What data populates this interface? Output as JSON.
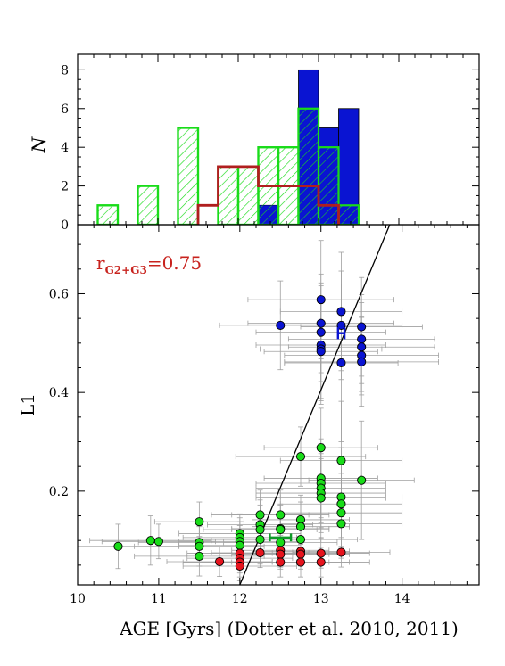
{
  "colors": {
    "blue": "#0a14d2",
    "green": "#19dc19",
    "green_dark": "#0e9a28",
    "red": "#e6141e",
    "dark_red": "#b01e1e",
    "errorbar": "#a0a0a0",
    "line": "#000000"
  },
  "chart_data": [
    {
      "type": "histogram",
      "ylabel": "N",
      "xlim": [
        10,
        15
      ],
      "ylim": [
        0,
        8.8
      ],
      "yticks": [
        "0",
        "2",
        "4",
        "6",
        "8"
      ],
      "bin_width": 0.25,
      "series": [
        {
          "group": "green",
          "style": "hatched",
          "bins": [
            {
              "x0": 10.25,
              "x1": 10.5,
              "n": 1
            },
            {
              "x0": 10.75,
              "x1": 11.0,
              "n": 2
            },
            {
              "x0": 11.25,
              "x1": 11.5,
              "n": 5
            },
            {
              "x0": 11.75,
              "x1": 12.0,
              "n": 3
            },
            {
              "x0": 12.0,
              "x1": 12.25,
              "n": 3
            },
            {
              "x0": 12.25,
              "x1": 12.5,
              "n": 4
            },
            {
              "x0": 12.5,
              "x1": 12.75,
              "n": 4
            },
            {
              "x0": 12.75,
              "x1": 13.0,
              "n": 6
            },
            {
              "x0": 13.0,
              "x1": 13.25,
              "n": 4
            },
            {
              "x0": 13.25,
              "x1": 13.5,
              "n": 1
            }
          ]
        },
        {
          "group": "blue",
          "style": "filled",
          "bins": [
            {
              "x0": 12.25,
              "x1": 12.5,
              "n": 1
            },
            {
              "x0": 12.75,
              "x1": 13.0,
              "n": 8
            },
            {
              "x0": 13.0,
              "x1": 13.25,
              "n": 5
            },
            {
              "x0": 13.25,
              "x1": 13.5,
              "n": 6
            }
          ]
        },
        {
          "group": "red",
          "style": "step",
          "bins": [
            {
              "x0": 11.5,
              "x1": 11.75,
              "n": 1
            },
            {
              "x0": 11.75,
              "x1": 12.0,
              "n": 3
            },
            {
              "x0": 12.0,
              "x1": 12.25,
              "n": 3
            },
            {
              "x0": 12.25,
              "x1": 12.5,
              "n": 2
            },
            {
              "x0": 12.5,
              "x1": 12.75,
              "n": 2
            },
            {
              "x0": 12.75,
              "x1": 13.0,
              "n": 2
            },
            {
              "x0": 13.0,
              "x1": 13.25,
              "n": 1
            }
          ]
        }
      ]
    },
    {
      "type": "scatter",
      "xlabel": "AGE [Gyrs] (Dotter et al. 2010, 2011)",
      "ylabel": "L1",
      "xlim": [
        10,
        14.95
      ],
      "ylim": [
        0.01,
        0.74
      ],
      "xticks": [
        "10",
        "11",
        "12",
        "13",
        "14"
      ],
      "yticks": [
        "0.2",
        "0.4",
        "0.6"
      ],
      "annotation_base": "r",
      "annotation_sub": "G2+G3",
      "annotation_value": "=0.75",
      "fit_line": {
        "x": [
          12.0,
          14.0
        ],
        "y": [
          0.01,
          0.8
        ]
      },
      "mean_points": [
        {
          "group": "blue",
          "x": 13.25,
          "y": 0.52,
          "xerr": 0.04,
          "yerr": 0.012
        },
        {
          "group": "green",
          "x": 12.5,
          "y": 0.106,
          "xerr": 0.13,
          "yerr": 0.008
        }
      ],
      "series": [
        {
          "group": "blue",
          "points": [
            {
              "x": 12.5,
              "y": 0.536,
              "xerr": 0.75,
              "yerr": 0.09
            },
            {
              "x": 13.0,
              "y": 0.588,
              "xerr": 0.9,
              "yerr": 0.12
            },
            {
              "x": 13.0,
              "y": 0.54,
              "xerr": 0.9,
              "yerr": 0.1
            },
            {
              "x": 13.0,
              "y": 0.522,
              "xerr": 0.8,
              "yerr": 0.1
            },
            {
              "x": 13.0,
              "y": 0.496,
              "xerr": 0.8,
              "yerr": 0.12
            },
            {
              "x": 13.0,
              "y": 0.488,
              "xerr": 0.75,
              "yerr": 0.1
            },
            {
              "x": 13.0,
              "y": 0.483,
              "xerr": 0.7,
              "yerr": 0.1
            },
            {
              "x": 13.25,
              "y": 0.564,
              "xerr": 0.75,
              "yerr": 0.12
            },
            {
              "x": 13.25,
              "y": 0.536,
              "xerr": 0.75,
              "yerr": 0.11
            },
            {
              "x": 13.25,
              "y": 0.46,
              "xerr": 0.7,
              "yerr": 0.16
            },
            {
              "x": 13.5,
              "y": 0.533,
              "xerr": 0.75,
              "yerr": 0.1
            },
            {
              "x": 13.5,
              "y": 0.508,
              "xerr": 0.9,
              "yerr": 0.09
            },
            {
              "x": 13.5,
              "y": 0.492,
              "xerr": 0.9,
              "yerr": 0.09
            },
            {
              "x": 13.5,
              "y": 0.475,
              "xerr": 0.95,
              "yerr": 0.08
            },
            {
              "x": 13.5,
              "y": 0.462,
              "xerr": 0.95,
              "yerr": 0.09
            }
          ]
        },
        {
          "group": "green",
          "points": [
            {
              "x": 10.5,
              "y": 0.088,
              "xerr": 0.75,
              "yerr": 0.045
            },
            {
              "x": 10.9,
              "y": 0.1,
              "xerr": 0.75,
              "yerr": 0.05
            },
            {
              "x": 11.0,
              "y": 0.098,
              "xerr": 0.7,
              "yerr": 0.035
            },
            {
              "x": 11.5,
              "y": 0.138,
              "xerr": 0.55,
              "yerr": 0.04
            },
            {
              "x": 11.5,
              "y": 0.096,
              "xerr": 0.75,
              "yerr": 0.035
            },
            {
              "x": 11.5,
              "y": 0.088,
              "xerr": 0.8,
              "yerr": 0.04
            },
            {
              "x": 11.5,
              "y": 0.068,
              "xerr": 0.8,
              "yerr": 0.04
            },
            {
              "x": 12.0,
              "y": 0.114,
              "xerr": 0.75,
              "yerr": 0.04
            },
            {
              "x": 12.0,
              "y": 0.106,
              "xerr": 0.7,
              "yerr": 0.04
            },
            {
              "x": 12.0,
              "y": 0.098,
              "xerr": 0.75,
              "yerr": 0.04
            },
            {
              "x": 12.0,
              "y": 0.09,
              "xerr": 0.75,
              "yerr": 0.04
            },
            {
              "x": 12.25,
              "y": 0.152,
              "xerr": 0.6,
              "yerr": 0.05
            },
            {
              "x": 12.25,
              "y": 0.132,
              "xerr": 0.65,
              "yerr": 0.05
            },
            {
              "x": 12.25,
              "y": 0.122,
              "xerr": 0.7,
              "yerr": 0.05
            },
            {
              "x": 12.25,
              "y": 0.102,
              "xerr": 0.75,
              "yerr": 0.05
            },
            {
              "x": 12.5,
              "y": 0.152,
              "xerr": 0.6,
              "yerr": 0.05
            },
            {
              "x": 12.5,
              "y": 0.124,
              "xerr": 0.6,
              "yerr": 0.05
            },
            {
              "x": 12.5,
              "y": 0.122,
              "xerr": 0.6,
              "yerr": 0.05
            },
            {
              "x": 12.5,
              "y": 0.096,
              "xerr": 0.7,
              "yerr": 0.05
            },
            {
              "x": 12.75,
              "y": 0.27,
              "xerr": 0.8,
              "yerr": 0.06
            },
            {
              "x": 12.75,
              "y": 0.142,
              "xerr": 0.6,
              "yerr": 0.05
            },
            {
              "x": 12.75,
              "y": 0.128,
              "xerr": 0.6,
              "yerr": 0.05
            },
            {
              "x": 12.75,
              "y": 0.102,
              "xerr": 0.7,
              "yerr": 0.05
            },
            {
              "x": 13.0,
              "y": 0.288,
              "xerr": 0.7,
              "yerr": 0.08
            },
            {
              "x": 13.0,
              "y": 0.226,
              "xerr": 0.7,
              "yerr": 0.08
            },
            {
              "x": 13.0,
              "y": 0.216,
              "xerr": 0.8,
              "yerr": 0.08
            },
            {
              "x": 13.0,
              "y": 0.206,
              "xerr": 0.8,
              "yerr": 0.08
            },
            {
              "x": 13.0,
              "y": 0.196,
              "xerr": 0.8,
              "yerr": 0.08
            },
            {
              "x": 13.0,
              "y": 0.186,
              "xerr": 0.8,
              "yerr": 0.08
            },
            {
              "x": 13.25,
              "y": 0.262,
              "xerr": 0.75,
              "yerr": 0.12
            },
            {
              "x": 13.25,
              "y": 0.188,
              "xerr": 0.75,
              "yerr": 0.1
            },
            {
              "x": 13.25,
              "y": 0.174,
              "xerr": 0.75,
              "yerr": 0.09
            },
            {
              "x": 13.25,
              "y": 0.156,
              "xerr": 0.75,
              "yerr": 0.08
            },
            {
              "x": 13.25,
              "y": 0.134,
              "xerr": 0.75,
              "yerr": 0.07
            },
            {
              "x": 13.5,
              "y": 0.222,
              "xerr": 0.65,
              "yerr": 0.12
            }
          ]
        },
        {
          "group": "red",
          "points": [
            {
              "x": 11.75,
              "y": 0.057,
              "xerr": 0.65,
              "yerr": 0.03
            },
            {
              "x": 12.0,
              "y": 0.074,
              "xerr": 0.65,
              "yerr": 0.03
            },
            {
              "x": 12.0,
              "y": 0.064,
              "xerr": 0.65,
              "yerr": 0.03
            },
            {
              "x": 12.0,
              "y": 0.056,
              "xerr": 0.7,
              "yerr": 0.03
            },
            {
              "x": 12.0,
              "y": 0.048,
              "xerr": 0.7,
              "yerr": 0.03
            },
            {
              "x": 12.25,
              "y": 0.075,
              "xerr": 0.6,
              "yerr": 0.03
            },
            {
              "x": 12.5,
              "y": 0.08,
              "xerr": 0.6,
              "yerr": 0.03
            },
            {
              "x": 12.5,
              "y": 0.072,
              "xerr": 0.6,
              "yerr": 0.03
            },
            {
              "x": 12.5,
              "y": 0.056,
              "xerr": 0.6,
              "yerr": 0.03
            },
            {
              "x": 12.75,
              "y": 0.078,
              "xerr": 0.6,
              "yerr": 0.03
            },
            {
              "x": 12.75,
              "y": 0.072,
              "xerr": 0.6,
              "yerr": 0.03
            },
            {
              "x": 12.75,
              "y": 0.056,
              "xerr": 0.6,
              "yerr": 0.03
            },
            {
              "x": 13.0,
              "y": 0.074,
              "xerr": 0.6,
              "yerr": 0.03
            },
            {
              "x": 13.0,
              "y": 0.056,
              "xerr": 0.6,
              "yerr": 0.03
            },
            {
              "x": 13.25,
              "y": 0.076,
              "xerr": 0.6,
              "yerr": 0.03
            }
          ]
        }
      ]
    }
  ]
}
